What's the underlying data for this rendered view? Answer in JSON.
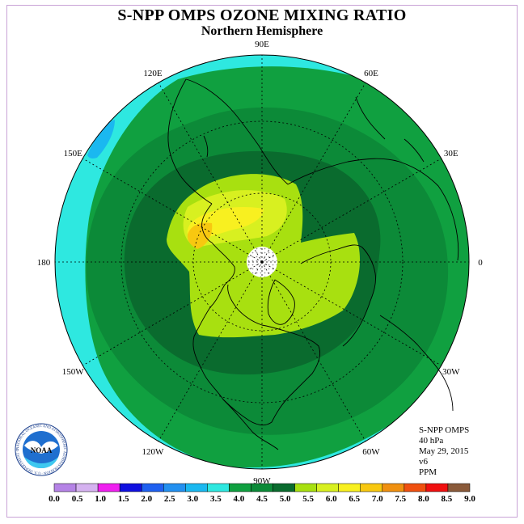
{
  "header": {
    "title": "S-NPP OMPS OZONE MIXING RATIO",
    "subtitle": "Northern Hemisphere"
  },
  "map": {
    "projection": "north polar stereographic",
    "longitude_labels": [
      {
        "label": "90E",
        "lon": 90
      },
      {
        "label": "60E",
        "lon": 60
      },
      {
        "label": "30E",
        "lon": 30
      },
      {
        "label": "0",
        "lon": 0
      },
      {
        "label": "30W",
        "lon": -30
      },
      {
        "label": "60W",
        "lon": -60
      },
      {
        "label": "90W",
        "lon": -90
      },
      {
        "label": "120W",
        "lon": -120
      },
      {
        "label": "150W",
        "lon": -150
      },
      {
        "label": "180",
        "lon": 180
      },
      {
        "label": "150E",
        "lon": 150
      },
      {
        "label": "120E",
        "lon": 120
      }
    ],
    "latitude_circles": [
      30,
      60
    ],
    "missing_data_region": "polar night (white dotted disk at pole)"
  },
  "info": {
    "instrument": "S-NPP OMPS",
    "level": "40 hPa",
    "date": "May 29, 2015",
    "version": "v6",
    "units": "PPM"
  },
  "logo": {
    "text": "NOAA",
    "ring_text": "NATIONAL OCEANIC AND ATMOSPHERIC ADMINISTRATION · U.S. DEPARTMENT OF COMMERCE"
  },
  "colorbar": {
    "labels": [
      "0.0",
      "0.5",
      "1.0",
      "1.5",
      "2.0",
      "2.5",
      "3.0",
      "3.5",
      "4.0",
      "4.5",
      "5.0",
      "5.5",
      "6.0",
      "6.5",
      "7.0",
      "7.5",
      "8.0",
      "8.5",
      "9.0"
    ],
    "colors": [
      "#b583e6",
      "#d5b2f0",
      "#f020f0",
      "#1010e0",
      "#1f60f0",
      "#2390f0",
      "#1ab8f0",
      "#2ee8e0",
      "#10a040",
      "#0c8a38",
      "#0a6b2e",
      "#a8e010",
      "#d8f020",
      "#f8f020",
      "#f8c810",
      "#f09010",
      "#f05010",
      "#f01010",
      "#8a5a3a"
    ]
  },
  "chart_data": {
    "type": "heatmap",
    "title": "S-NPP OMPS OZONE MIXING RATIO",
    "subtitle": "Northern Hemisphere",
    "variable": "ozone mixing ratio",
    "units": "PPM",
    "pressure_level": "40 hPa",
    "date": "May 29, 2015",
    "color_scale": {
      "bounds": [
        0.0,
        0.5,
        1.0,
        1.5,
        2.0,
        2.5,
        3.0,
        3.5,
        4.0,
        4.5,
        5.0,
        5.5,
        6.0,
        6.5,
        7.0,
        7.5,
        8.0,
        8.5,
        9.0
      ]
    },
    "regions": [
      {
        "area": "equatorial band / outer edge",
        "value_range": [
          3.5,
          4.0
        ]
      },
      {
        "area": "small patch near 150E edge",
        "value_range": [
          3.0,
          3.5
        ]
      },
      {
        "area": "subtropics",
        "value_range": [
          4.0,
          4.5
        ]
      },
      {
        "area": "mid-latitudes",
        "value_range": [
          4.5,
          5.0
        ]
      },
      {
        "area": "high latitudes",
        "value_range": [
          5.0,
          5.5
        ]
      },
      {
        "area": "polar region",
        "value_range": [
          5.5,
          6.0
        ]
      },
      {
        "area": "Alaska / Bering Sea maximum",
        "value_range": [
          6.0,
          7.0
        ]
      }
    ]
  }
}
